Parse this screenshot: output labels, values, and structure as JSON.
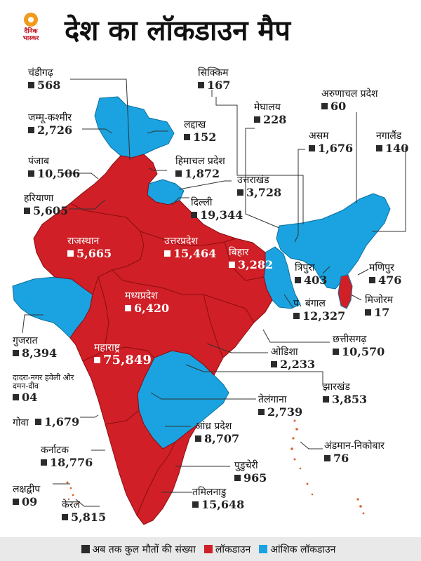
{
  "title": "देश का लॉकडाउन मैप",
  "logo_text": "दैनिक भास्कर",
  "colors": {
    "lockdown": "#d01f26",
    "partial": "#1aa3e0",
    "marker": "#2b2b2b"
  },
  "states": {
    "chandigarh": {
      "name": "चंडीगढ़",
      "value": "568"
    },
    "jammu_kashmir": {
      "name": "जम्मू-कश्मीर",
      "value": "2,726"
    },
    "punjab": {
      "name": "पंजाब",
      "value": "10,506"
    },
    "haryana": {
      "name": "हरियाणा",
      "value": "5,605"
    },
    "rajasthan": {
      "name": "राजस्थान",
      "value": "5,665"
    },
    "gujarat": {
      "name": "गुजरात",
      "value": "8,394"
    },
    "dnh_dd": {
      "name": "दादरा-नगर हवेली और दमन-दीव",
      "value": "04"
    },
    "goa": {
      "name": "गोवा",
      "value": "1,679"
    },
    "karnataka": {
      "name": "कर्नाटक",
      "value": "18,776"
    },
    "lakshadweep": {
      "name": "लक्षद्वीप",
      "value": "09"
    },
    "kerala": {
      "name": "केरल",
      "value": "5,815"
    },
    "sikkim": {
      "name": "सिक्किम",
      "value": "167"
    },
    "ladakh": {
      "name": "लद्दाख",
      "value": "152"
    },
    "himachal": {
      "name": "हिमाचल प्रदेश",
      "value": "1,872"
    },
    "uttarakhand": {
      "name": "उत्तराखंड",
      "value": "3,728"
    },
    "delhi": {
      "name": "दिल्ली",
      "value": "19,344"
    },
    "uttar_pradesh": {
      "name": "उत्तरप्रदेश",
      "value": "15,464"
    },
    "bihar": {
      "name": "बिहार",
      "value": "3,282"
    },
    "madhya_pradesh": {
      "name": "मध्यप्रदेश",
      "value": "6,420"
    },
    "maharashtra": {
      "name": "महाराष्ट्र",
      "value": "75,849"
    },
    "meghalaya": {
      "name": "मेघालय",
      "value": "228"
    },
    "arunachal": {
      "name": "अरुणाचल प्रदेश",
      "value": "60"
    },
    "assam": {
      "name": "असम",
      "value": "1,676"
    },
    "nagaland": {
      "name": "नगालैंड",
      "value": "140"
    },
    "tripura": {
      "name": "त्रिपुरा",
      "value": "403"
    },
    "manipur": {
      "name": "मणिपुर",
      "value": "476"
    },
    "mizoram": {
      "name": "मिजोरम",
      "value": "17"
    },
    "west_bengal": {
      "name": "पं. बंगाल",
      "value": "12,327"
    },
    "chhattisgarh": {
      "name": "छत्तीसगढ़",
      "value": "10,570"
    },
    "odisha": {
      "name": "ओडिशा",
      "value": "2,233"
    },
    "jharkhand": {
      "name": "झारखंड",
      "value": "3,853"
    },
    "telangana": {
      "name": "तेलंगाना",
      "value": "2,739"
    },
    "andhra": {
      "name": "आंध्र प्रदेश",
      "value": "8,707"
    },
    "andaman": {
      "name": "अंडमान-निकोबार",
      "value": "76"
    },
    "puducherry": {
      "name": "पुडुचेरी",
      "value": "965"
    },
    "tamil_nadu": {
      "name": "तमिलनाडु",
      "value": "15,648"
    }
  },
  "legend": {
    "deaths": "अब तक कुल मौतों की संख्या",
    "lockdown": "लॉकडाउन",
    "partial": "आंशिक लॉकडाउन"
  }
}
